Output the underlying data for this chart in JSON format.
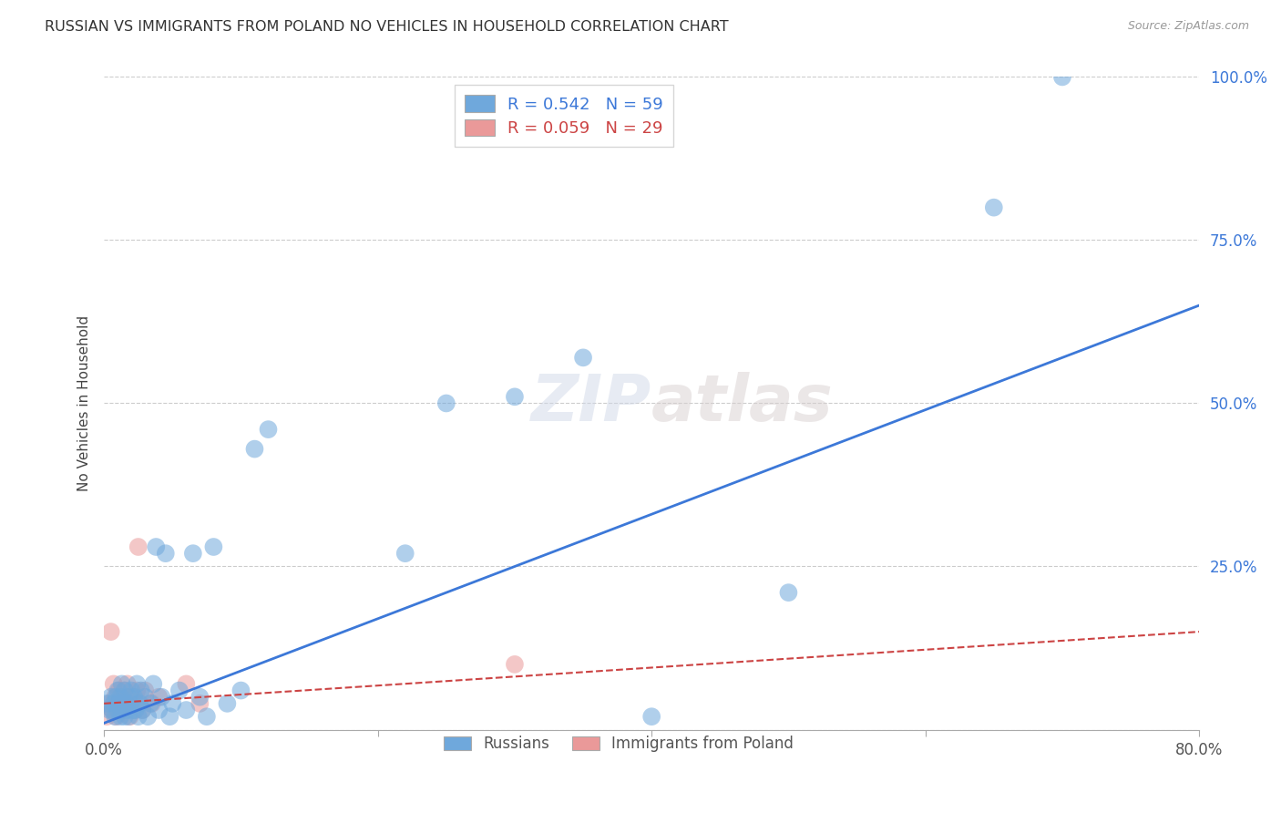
{
  "title": "RUSSIAN VS IMMIGRANTS FROM POLAND NO VEHICLES IN HOUSEHOLD CORRELATION CHART",
  "source": "Source: ZipAtlas.com",
  "ylabel": "No Vehicles in Household",
  "xlim": [
    0,
    0.8
  ],
  "ylim": [
    0,
    1.0
  ],
  "legend_russian_label": "R = 0.542   N = 59",
  "legend_poland_label": "R = 0.059   N = 29",
  "legend_bottom_russian": "Russians",
  "legend_bottom_poland": "Immigrants from Poland",
  "russian_color": "#6fa8dc",
  "poland_color": "#ea9999",
  "russian_line_color": "#3c78d8",
  "poland_line_color": "#cc4444",
  "watermark_part1": "ZIP",
  "watermark_part2": "atlas",
  "russian_x": [
    0.002,
    0.004,
    0.005,
    0.006,
    0.007,
    0.008,
    0.009,
    0.01,
    0.01,
    0.011,
    0.012,
    0.012,
    0.013,
    0.013,
    0.014,
    0.015,
    0.015,
    0.016,
    0.017,
    0.018,
    0.018,
    0.019,
    0.02,
    0.021,
    0.022,
    0.023,
    0.024,
    0.025,
    0.026,
    0.027,
    0.028,
    0.03,
    0.032,
    0.034,
    0.036,
    0.038,
    0.04,
    0.042,
    0.045,
    0.048,
    0.05,
    0.055,
    0.06,
    0.065,
    0.07,
    0.075,
    0.08,
    0.09,
    0.1,
    0.11,
    0.12,
    0.22,
    0.25,
    0.3,
    0.35,
    0.4,
    0.5,
    0.65,
    0.7
  ],
  "russian_y": [
    0.04,
    0.03,
    0.05,
    0.03,
    0.04,
    0.02,
    0.05,
    0.03,
    0.06,
    0.04,
    0.02,
    0.05,
    0.03,
    0.07,
    0.04,
    0.02,
    0.06,
    0.04,
    0.03,
    0.05,
    0.02,
    0.04,
    0.06,
    0.03,
    0.05,
    0.03,
    0.07,
    0.02,
    0.04,
    0.06,
    0.03,
    0.05,
    0.02,
    0.04,
    0.07,
    0.28,
    0.03,
    0.05,
    0.27,
    0.02,
    0.04,
    0.06,
    0.03,
    0.27,
    0.05,
    0.02,
    0.28,
    0.04,
    0.06,
    0.43,
    0.46,
    0.27,
    0.5,
    0.51,
    0.57,
    0.02,
    0.21,
    0.8,
    1.0
  ],
  "poland_x": [
    0.002,
    0.004,
    0.005,
    0.006,
    0.007,
    0.008,
    0.009,
    0.01,
    0.011,
    0.012,
    0.013,
    0.014,
    0.015,
    0.016,
    0.017,
    0.018,
    0.019,
    0.02,
    0.022,
    0.024,
    0.025,
    0.026,
    0.028,
    0.03,
    0.035,
    0.04,
    0.06,
    0.07,
    0.3
  ],
  "poland_y": [
    0.02,
    0.04,
    0.15,
    0.03,
    0.07,
    0.05,
    0.02,
    0.04,
    0.06,
    0.03,
    0.05,
    0.04,
    0.06,
    0.03,
    0.07,
    0.04,
    0.02,
    0.05,
    0.03,
    0.06,
    0.28,
    0.04,
    0.03,
    0.06,
    0.04,
    0.05,
    0.07,
    0.04,
    0.1
  ],
  "russian_line_x0": 0.0,
  "russian_line_y0": 0.01,
  "russian_line_x1": 0.8,
  "russian_line_y1": 0.65,
  "poland_line_x0": 0.0,
  "poland_line_y0": 0.04,
  "poland_line_x1": 0.8,
  "poland_line_y1": 0.15
}
